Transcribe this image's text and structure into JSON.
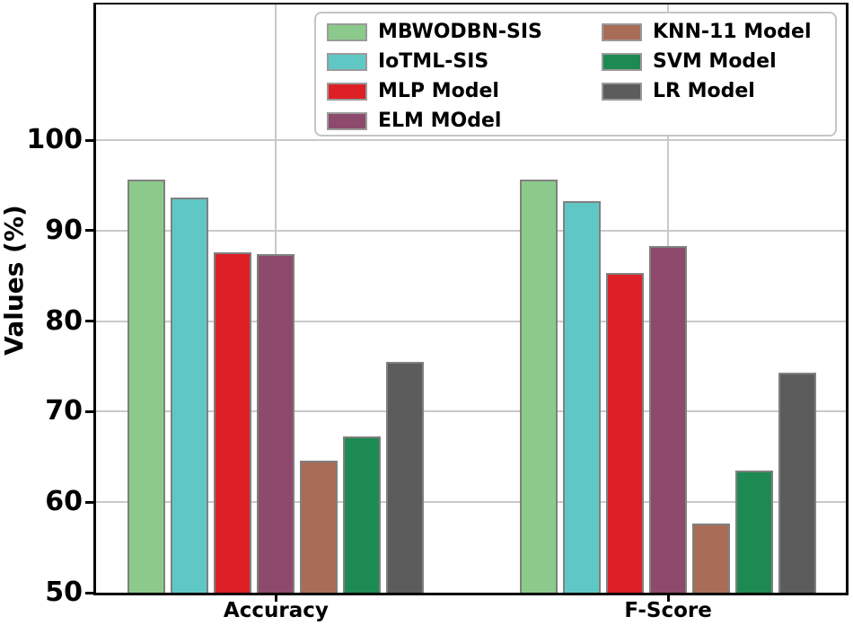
{
  "chart_data": {
    "type": "bar",
    "title": "",
    "ylabel": "Values (%)",
    "ylim": [
      50,
      115
    ],
    "yticks": [
      50,
      60,
      70,
      80,
      90,
      100
    ],
    "grid": true,
    "legend_position": "top-right",
    "legend_columns": 2,
    "categories": [
      "Accuracy",
      "F-Score"
    ],
    "series": [
      {
        "name": "MBWODBN-SIS",
        "color": "#8bca8a",
        "values": [
          95.7,
          95.7
        ]
      },
      {
        "name": "IoTML-SIS",
        "color": "#5fc8c5",
        "values": [
          93.7,
          93.3
        ]
      },
      {
        "name": "MLP Model",
        "color": "#dc2026",
        "values": [
          87.6,
          85.3
        ]
      },
      {
        "name": "ELM MOdel",
        "color": "#8d4a6d",
        "values": [
          87.4,
          88.3
        ]
      },
      {
        "name": "KNN-11 Model",
        "color": "#a96c57",
        "values": [
          64.6,
          57.6
        ]
      },
      {
        "name": "SVM Model",
        "color": "#1d8a53",
        "values": [
          67.3,
          63.5
        ]
      },
      {
        "name": "LR Model",
        "color": "#5c5c5c",
        "values": [
          75.5,
          74.3
        ]
      }
    ],
    "colors": {
      "bar_edge": "#808080",
      "axis": "#000000",
      "grid": "#c9c9c9",
      "legend_border": "#c4c4c4"
    }
  }
}
